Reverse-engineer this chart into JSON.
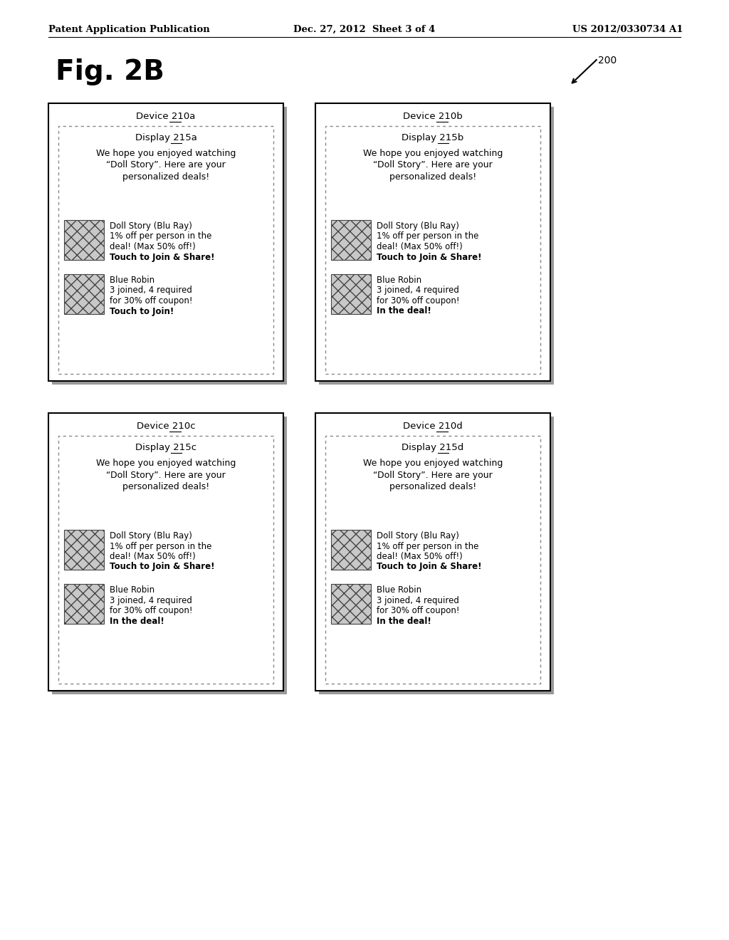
{
  "header_left": "Patent Application Publication",
  "header_mid": "Dec. 27, 2012  Sheet 3 of 4",
  "header_right": "US 2012/0330734 A1",
  "fig_label": "Fig. 2B",
  "ref_num": "200",
  "devices": [
    {
      "label_prefix": "Device ",
      "label_num": "210a",
      "display_prefix": "Display ",
      "display_num": "215a",
      "message": "We hope you enjoyed watching\n“Doll Story”. Here are your\npersonalized deals!",
      "item1_lines": [
        "Doll Story (Blu Ray)",
        "1% off per person in the",
        "deal! (Max 50% off!)",
        "Touch to Join & Share!"
      ],
      "item1_bold_idx": 3,
      "item2_lines": [
        "Blue Robin",
        "3 joined, 4 required",
        "for 30% off coupon!",
        "Touch to Join!"
      ],
      "item2_bold_idx": 3,
      "col": 0,
      "row": 1
    },
    {
      "label_prefix": "Device ",
      "label_num": "210b",
      "display_prefix": "Display ",
      "display_num": "215b",
      "message": "We hope you enjoyed watching\n“Doll Story”. Here are your\npersonalized deals!",
      "item1_lines": [
        "Doll Story (Blu Ray)",
        "1% off per person in the",
        "deal! (Max 50% off!)",
        "Touch to Join & Share!"
      ],
      "item1_bold_idx": 3,
      "item2_lines": [
        "Blue Robin",
        "3 joined, 4 required",
        "for 30% off coupon!",
        "In the deal!"
      ],
      "item2_bold_idx": 3,
      "col": 1,
      "row": 1
    },
    {
      "label_prefix": "Device ",
      "label_num": "210c",
      "display_prefix": "Display ",
      "display_num": "215c",
      "message": "We hope you enjoyed watching\n“Doll Story”. Here are your\npersonalized deals!",
      "item1_lines": [
        "Doll Story (Blu Ray)",
        "1% off per person in the",
        "deal! (Max 50% off!)",
        "Touch to Join & Share!"
      ],
      "item1_bold_idx": 3,
      "item2_lines": [
        "Blue Robin",
        "3 joined, 4 required",
        "for 30% off coupon!",
        "In the deal!"
      ],
      "item2_bold_idx": 3,
      "col": 0,
      "row": 0
    },
    {
      "label_prefix": "Device ",
      "label_num": "210d",
      "display_prefix": "Display ",
      "display_num": "215d",
      "message": "We hope you enjoyed watching\n“Doll Story”. Here are your\npersonalized deals!",
      "item1_lines": [
        "Doll Story (Blu Ray)",
        "1% off per person in the",
        "deal! (Max 50% off!)",
        "Touch to Join & Share!"
      ],
      "item1_bold_idx": 3,
      "item2_lines": [
        "Blue Robin",
        "3 joined, 4 required",
        "for 30% off coupon!",
        "In the deal!"
      ],
      "item2_bold_idx": 3,
      "col": 1,
      "row": 0
    }
  ],
  "bg_color": "#ffffff"
}
